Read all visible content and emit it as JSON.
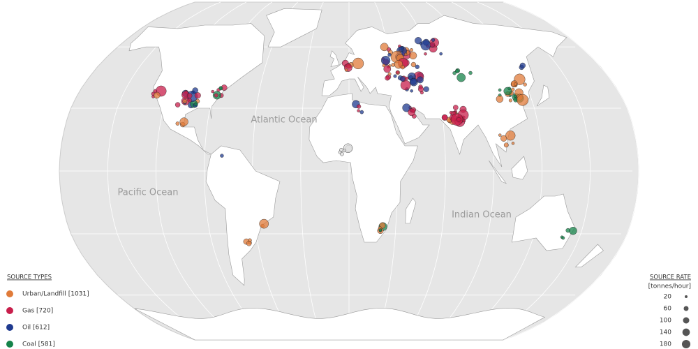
{
  "map": {
    "oceans": [
      "Atlantic Ocean",
      "Pacific Ocean",
      "Indian Ocean"
    ],
    "source_types": {
      "title": "SOURCE TYPES",
      "items": [
        {
          "label": "Urban/Landfill [1031]",
          "color": "#e07b39"
        },
        {
          "label": "Gas [720]",
          "color": "#c81e4b"
        },
        {
          "label": "Oil [612]",
          "color": "#1f3a8f"
        },
        {
          "label": "Coal [581]",
          "color": "#15834a"
        }
      ]
    },
    "source_rate": {
      "title": "SOURCE RATE",
      "unit": "[tonnes/hour]",
      "values": [
        20,
        60,
        100,
        140,
        180
      ]
    }
  }
}
